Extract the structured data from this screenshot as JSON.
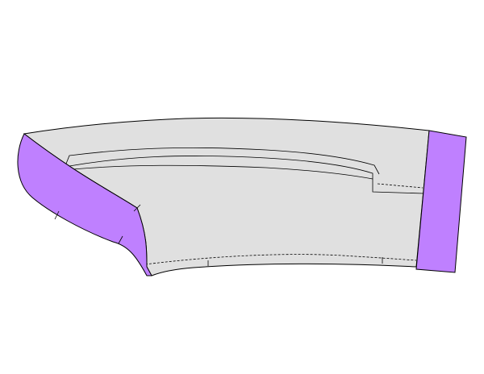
{
  "colors": {
    "background": "#ffffff",
    "main_piece_fill": "#e0e0e0",
    "accent_piece_fill": "#bf80ff",
    "outline": "#000000"
  },
  "pieces": {
    "main_body": {
      "kind": "garment-pattern-piece"
    },
    "curved_side_band": {
      "kind": "garment-pattern-piece"
    },
    "end_cuff_band": {
      "kind": "garment-pattern-piece"
    }
  }
}
